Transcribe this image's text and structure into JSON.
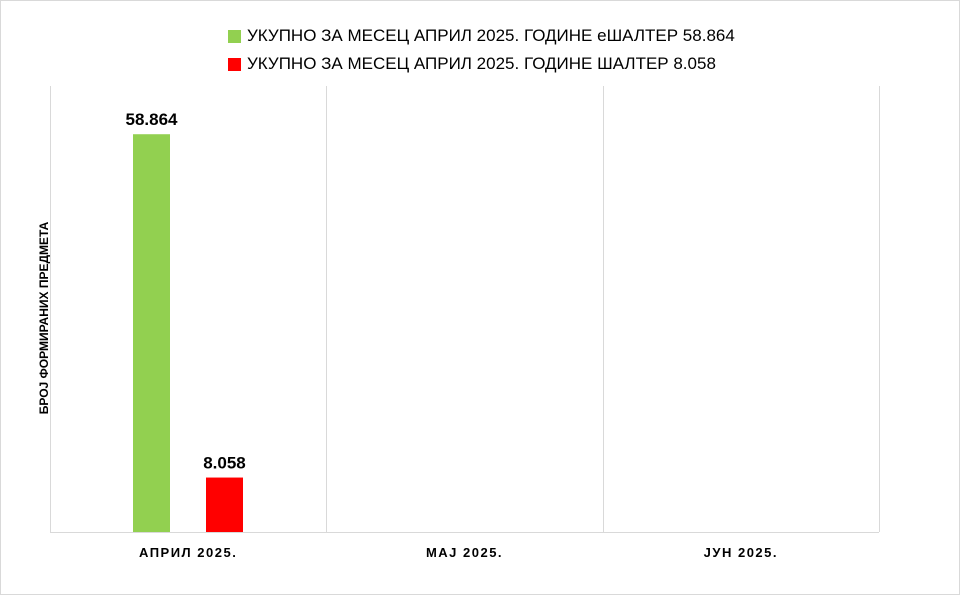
{
  "chart_data": {
    "type": "bar",
    "title": "",
    "ylabel": "БРОЈ ФОРМИРАНИХ ПРЕДМЕТА",
    "xlabel": "",
    "categories": [
      "АПРИЛ 2025.",
      "МАЈ 2025.",
      "ЈУН 2025."
    ],
    "series": [
      {
        "name": "УКУПНО ЗА МЕСЕЦ АПРИЛ 2025. ГОДИНЕ еШАЛТЕР 58.864",
        "color": "#92d050",
        "values": [
          58864,
          null,
          null
        ],
        "labels": [
          "58.864",
          "",
          ""
        ]
      },
      {
        "name": "УКУПНО ЗА МЕСЕЦ АПРИЛ 2025. ГОДИНЕ ШАЛТЕР 8.058",
        "color": "#ff0000",
        "values": [
          8058,
          null,
          null
        ],
        "labels": [
          "8.058",
          "",
          ""
        ]
      }
    ],
    "ylim": [
      0,
      66000
    ],
    "legend_position": "top",
    "grid": "vertical-category-separators"
  }
}
